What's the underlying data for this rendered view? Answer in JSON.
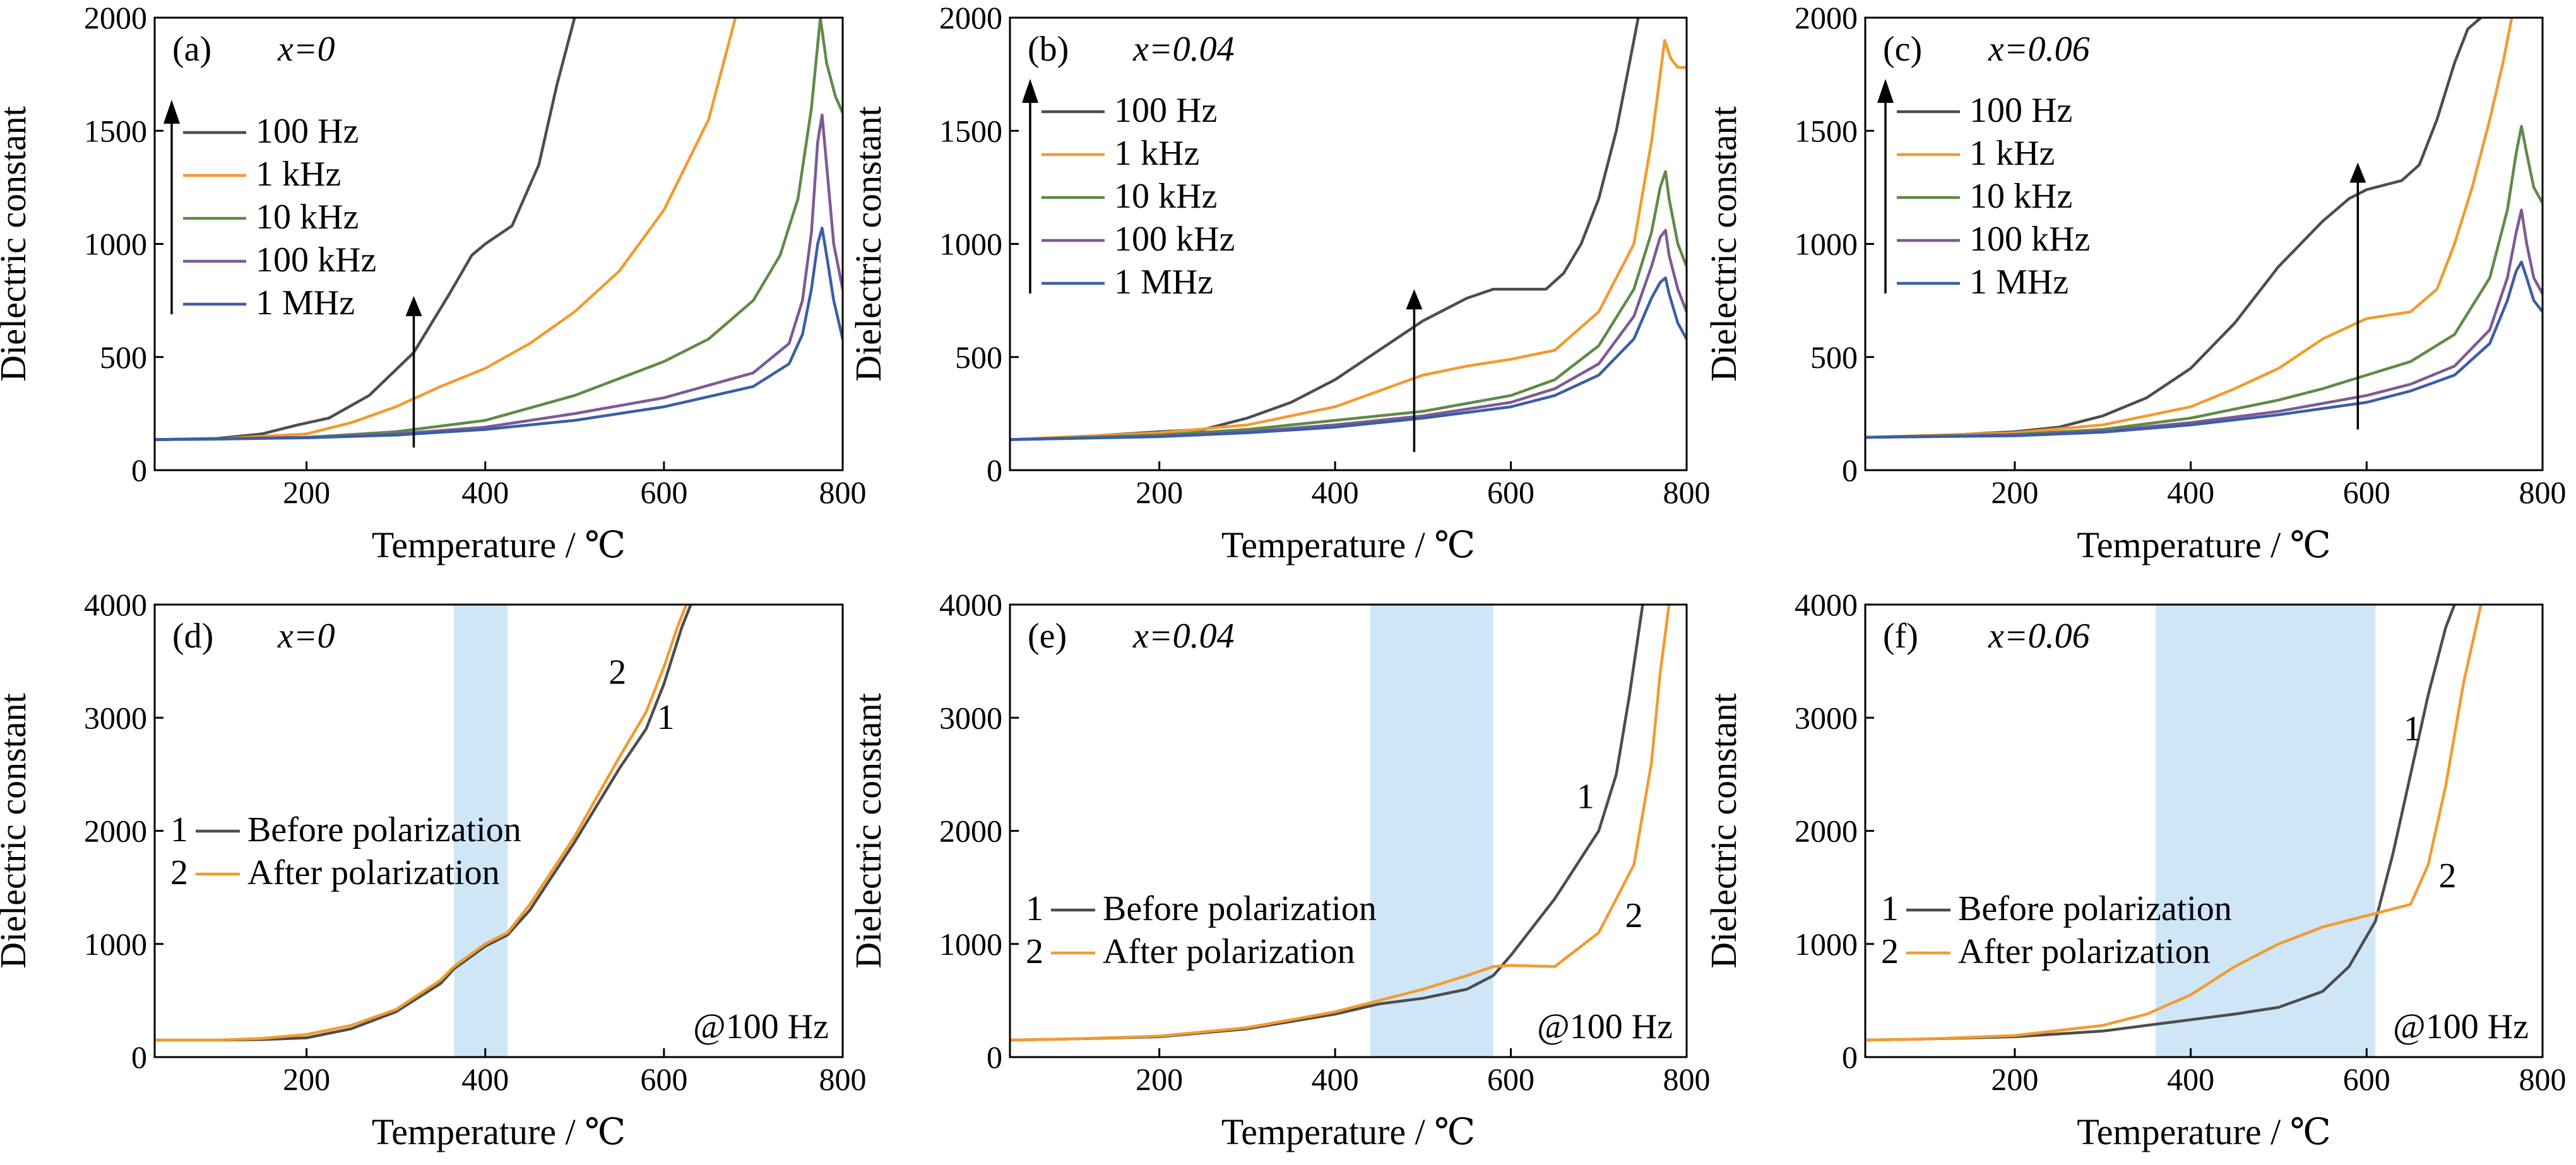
{
  "chart_data": [
    {
      "type": "line",
      "panel_label": "(a)",
      "composition": "x=0",
      "xlabel": "Temperature / ℃",
      "ylabel": "Dielectric constant",
      "xlim": [
        30,
        800
      ],
      "ylim": [
        0,
        2000
      ],
      "xticks": [
        200,
        400,
        600,
        800
      ],
      "yticks": [
        0,
        500,
        1000,
        1500,
        2000
      ],
      "legend_position": "upper-left",
      "arrow": {
        "x": 320,
        "y_from": 100,
        "y_to": 770
      },
      "series": [
        {
          "name": "100 Hz",
          "color": "#4d4d4d",
          "x": [
            30,
            100,
            150,
            190,
            225,
            270,
            320,
            360,
            385,
            400,
            430,
            460,
            480,
            500
          ],
          "y": [
            135,
            140,
            160,
            200,
            230,
            330,
            520,
            780,
            950,
            1000,
            1080,
            1350,
            1700,
            2000
          ]
        },
        {
          "name": "1 kHz",
          "color": "#f29b30",
          "x": [
            30,
            100,
            200,
            250,
            300,
            350,
            400,
            450,
            500,
            550,
            600,
            650,
            680
          ],
          "y": [
            135,
            138,
            160,
            210,
            280,
            370,
            450,
            560,
            700,
            880,
            1150,
            1550,
            2000
          ]
        },
        {
          "name": "10 kHz",
          "color": "#5f8a48",
          "x": [
            30,
            100,
            200,
            300,
            400,
            500,
            600,
            650,
            700,
            730,
            750,
            765,
            775,
            782,
            792,
            800
          ],
          "y": [
            135,
            137,
            145,
            170,
            220,
            330,
            480,
            580,
            750,
            950,
            1200,
            1600,
            2000,
            1800,
            1650,
            1580
          ]
        },
        {
          "name": "100 kHz",
          "color": "#7d5a96",
          "x": [
            30,
            200,
            300,
            400,
            500,
            600,
            700,
            740,
            755,
            765,
            772,
            777,
            782,
            790,
            800
          ],
          "y": [
            135,
            145,
            160,
            190,
            250,
            320,
            430,
            560,
            750,
            1050,
            1450,
            1570,
            1350,
            1000,
            800
          ]
        },
        {
          "name": "1 MHz",
          "color": "#3a5ea8",
          "x": [
            30,
            200,
            300,
            400,
            500,
            600,
            700,
            740,
            755,
            765,
            772,
            777,
            782,
            790,
            800
          ],
          "y": [
            135,
            143,
            155,
            180,
            220,
            280,
            370,
            470,
            600,
            800,
            1000,
            1070,
            950,
            750,
            580
          ]
        }
      ]
    },
    {
      "type": "line",
      "panel_label": "(b)",
      "composition": "x=0.04",
      "xlabel": "Temperature / ℃",
      "ylabel": "Dielectric constant",
      "xlim": [
        30,
        800
      ],
      "ylim": [
        0,
        2000
      ],
      "xticks": [
        200,
        400,
        600,
        800
      ],
      "yticks": [
        0,
        500,
        1000,
        1500,
        2000
      ],
      "legend_position": "upper-left",
      "arrow": {
        "x": 490,
        "y_from": 80,
        "y_to": 800
      },
      "series": [
        {
          "name": "100 Hz",
          "color": "#4d4d4d",
          "x": [
            30,
            100,
            200,
            250,
            300,
            350,
            400,
            450,
            500,
            550,
            580,
            600,
            640,
            660,
            680,
            700,
            720,
            740,
            745
          ],
          "y": [
            135,
            145,
            170,
            180,
            230,
            300,
            400,
            530,
            660,
            760,
            800,
            800,
            800,
            870,
            1000,
            1200,
            1500,
            1900,
            2000
          ]
        },
        {
          "name": "1 kHz",
          "color": "#f29b30",
          "x": [
            30,
            200,
            300,
            400,
            450,
            500,
            550,
            600,
            650,
            700,
            740,
            760,
            775,
            782,
            790,
            800
          ],
          "y": [
            135,
            165,
            200,
            280,
            350,
            420,
            460,
            490,
            530,
            700,
            1000,
            1450,
            1900,
            1820,
            1780,
            1780
          ]
        },
        {
          "name": "10 kHz",
          "color": "#5f8a48",
          "x": [
            30,
            200,
            300,
            400,
            500,
            600,
            650,
            700,
            740,
            760,
            770,
            776,
            780,
            790,
            800
          ],
          "y": [
            135,
            155,
            180,
            220,
            260,
            330,
            400,
            550,
            800,
            1050,
            1250,
            1320,
            1200,
            1000,
            900
          ]
        },
        {
          "name": "100 kHz",
          "color": "#7d5a96",
          "x": [
            30,
            200,
            300,
            400,
            500,
            600,
            650,
            700,
            740,
            760,
            770,
            776,
            780,
            790,
            800
          ],
          "y": [
            135,
            150,
            170,
            200,
            240,
            300,
            360,
            470,
            680,
            900,
            1030,
            1060,
            950,
            800,
            700
          ]
        },
        {
          "name": "1 MHz",
          "color": "#3a5ea8",
          "x": [
            30,
            200,
            300,
            400,
            500,
            600,
            650,
            700,
            740,
            760,
            770,
            776,
            780,
            790,
            800
          ],
          "y": [
            135,
            148,
            165,
            190,
            230,
            280,
            330,
            420,
            580,
            760,
            830,
            850,
            780,
            650,
            580
          ]
        }
      ]
    },
    {
      "type": "line",
      "panel_label": "(c)",
      "composition": "x=0.06",
      "xlabel": "Temperature / ℃",
      "ylabel": "Dielectric constant",
      "xlim": [
        30,
        800
      ],
      "ylim": [
        0,
        2000
      ],
      "xticks": [
        200,
        400,
        600,
        800
      ],
      "yticks": [
        0,
        500,
        1000,
        1500,
        2000
      ],
      "legend_position": "upper-left",
      "arrow": {
        "x": 590,
        "y_from": 180,
        "y_to": 1360
      },
      "series": [
        {
          "name": "100 Hz",
          "color": "#4d4d4d",
          "x": [
            30,
            100,
            200,
            250,
            300,
            350,
            400,
            450,
            500,
            550,
            580,
            600,
            640,
            660,
            680,
            700,
            715,
            730
          ],
          "y": [
            145,
            150,
            170,
            190,
            240,
            320,
            450,
            650,
            900,
            1100,
            1200,
            1240,
            1280,
            1350,
            1550,
            1800,
            1950,
            2000
          ]
        },
        {
          "name": "1 kHz",
          "color": "#f29b30",
          "x": [
            30,
            200,
            300,
            400,
            450,
            500,
            550,
            600,
            650,
            680,
            700,
            720,
            740,
            755,
            765
          ],
          "y": [
            145,
            165,
            200,
            280,
            360,
            450,
            580,
            670,
            700,
            800,
            1000,
            1250,
            1550,
            1800,
            2000
          ]
        },
        {
          "name": "10 kHz",
          "color": "#5f8a48",
          "x": [
            30,
            200,
            300,
            400,
            500,
            550,
            600,
            650,
            700,
            740,
            760,
            770,
            776,
            782,
            790,
            800
          ],
          "y": [
            145,
            158,
            180,
            230,
            310,
            360,
            420,
            480,
            600,
            850,
            1150,
            1400,
            1520,
            1400,
            1250,
            1180
          ]
        },
        {
          "name": "100 kHz",
          "color": "#7d5a96",
          "x": [
            30,
            200,
            300,
            400,
            500,
            600,
            650,
            700,
            740,
            760,
            770,
            776,
            782,
            790,
            800
          ],
          "y": [
            145,
            155,
            172,
            210,
            260,
            330,
            380,
            460,
            620,
            850,
            1050,
            1150,
            1000,
            850,
            780
          ]
        },
        {
          "name": "1 MHz",
          "color": "#3a5ea8",
          "x": [
            30,
            200,
            300,
            400,
            500,
            600,
            650,
            700,
            740,
            760,
            770,
            776,
            782,
            790,
            800
          ],
          "y": [
            145,
            152,
            168,
            200,
            245,
            300,
            350,
            420,
            560,
            750,
            880,
            920,
            850,
            750,
            700
          ]
        }
      ]
    },
    {
      "type": "line",
      "panel_label": "(d)",
      "composition": "x=0",
      "xlabel": "Temperature / ℃",
      "ylabel": "Dielectric constant",
      "xlim": [
        30,
        800
      ],
      "ylim": [
        0,
        4000
      ],
      "xticks": [
        200,
        400,
        600,
        800
      ],
      "yticks": [
        0,
        1000,
        2000,
        3000,
        4000
      ],
      "legend_position": "middle-left",
      "shaded_region": [
        365,
        425
      ],
      "frequency_note": "@100 Hz",
      "curve_labels": [
        {
          "text": "2",
          "x": 548,
          "y": 3300
        },
        {
          "text": "1",
          "x": 602,
          "y": 2900
        }
      ],
      "series": [
        {
          "name": "Before polarization",
          "number": "1",
          "color": "#4d4d4d",
          "x": [
            30,
            100,
            150,
            200,
            250,
            300,
            350,
            365,
            400,
            425,
            450,
            500,
            550,
            580,
            600,
            620,
            630
          ],
          "y": [
            150,
            150,
            155,
            170,
            250,
            400,
            650,
            780,
            980,
            1080,
            1300,
            1900,
            2550,
            2900,
            3300,
            3800,
            4000
          ]
        },
        {
          "name": "After polarization",
          "number": "2",
          "color": "#f29b30",
          "x": [
            30,
            100,
            150,
            200,
            250,
            300,
            350,
            365,
            400,
            425,
            450,
            500,
            550,
            580,
            600,
            615,
            625
          ],
          "y": [
            150,
            150,
            165,
            200,
            280,
            420,
            680,
            800,
            1000,
            1100,
            1350,
            1950,
            2650,
            3050,
            3450,
            3800,
            4000
          ]
        }
      ]
    },
    {
      "type": "line",
      "panel_label": "(e)",
      "composition": "x=0.04",
      "xlabel": "Temperature / ℃",
      "ylabel": "Dielectric constant",
      "xlim": [
        30,
        800
      ],
      "ylim": [
        0,
        4000
      ],
      "xticks": [
        200,
        400,
        600,
        800
      ],
      "yticks": [
        0,
        1000,
        2000,
        3000,
        4000
      ],
      "legend_position": "lower-left",
      "shaded_region": [
        440,
        580
      ],
      "frequency_note": "@100 Hz",
      "curve_labels": [
        {
          "text": "1",
          "x": 685,
          "y": 2200
        },
        {
          "text": "2",
          "x": 740,
          "y": 1150
        }
      ],
      "series": [
        {
          "name": "Before polarization",
          "number": "1",
          "color": "#4d4d4d",
          "x": [
            30,
            100,
            200,
            300,
            400,
            450,
            500,
            550,
            580,
            600,
            650,
            700,
            720,
            735,
            750
          ],
          "y": [
            150,
            160,
            180,
            250,
            380,
            470,
            520,
            600,
            720,
            900,
            1400,
            2000,
            2500,
            3200,
            4000
          ]
        },
        {
          "name": "After polarization",
          "number": "2",
          "color": "#f29b30",
          "x": [
            30,
            100,
            200,
            300,
            400,
            450,
            500,
            550,
            580,
            600,
            650,
            700,
            740,
            760,
            770,
            780
          ],
          "y": [
            150,
            160,
            185,
            260,
            400,
            500,
            600,
            720,
            800,
            810,
            800,
            1100,
            1700,
            2600,
            3400,
            4000
          ]
        }
      ]
    },
    {
      "type": "line",
      "panel_label": "(f)",
      "composition": "x=0.06",
      "xlabel": "Temperature / ℃",
      "ylabel": "Dielectric constant",
      "xlim": [
        30,
        800
      ],
      "ylim": [
        0,
        4000
      ],
      "xticks": [
        200,
        400,
        600,
        800
      ],
      "yticks": [
        0,
        1000,
        2000,
        3000,
        4000
      ],
      "legend_position": "lower-left",
      "shaded_region": [
        360,
        610
      ],
      "frequency_note": "@100 Hz",
      "curve_labels": [
        {
          "text": "1",
          "x": 652,
          "y": 2800
        },
        {
          "text": "2",
          "x": 692,
          "y": 1500
        }
      ],
      "series": [
        {
          "name": "Before polarization",
          "number": "1",
          "color": "#4d4d4d",
          "x": [
            30,
            100,
            200,
            300,
            400,
            450,
            500,
            550,
            580,
            610,
            630,
            650,
            670,
            690,
            700
          ],
          "y": [
            150,
            160,
            180,
            230,
            330,
            380,
            440,
            580,
            800,
            1200,
            1800,
            2500,
            3200,
            3800,
            4000
          ]
        },
        {
          "name": "After polarization",
          "number": "2",
          "color": "#f29b30",
          "x": [
            30,
            100,
            200,
            300,
            350,
            400,
            450,
            500,
            550,
            600,
            650,
            670,
            690,
            710,
            730
          ],
          "y": [
            150,
            160,
            190,
            280,
            380,
            550,
            800,
            1000,
            1150,
            1250,
            1350,
            1700,
            2400,
            3300,
            4000
          ]
        }
      ]
    }
  ]
}
